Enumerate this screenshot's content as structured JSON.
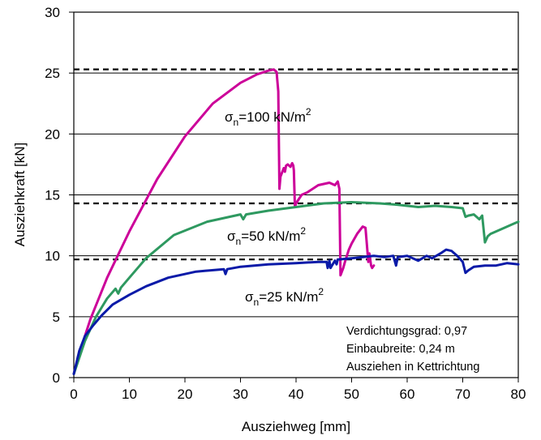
{
  "chart_data": {
    "type": "line",
    "xlabel": "Ausziehweg [mm]",
    "ylabel": "Ausziehkraft [kN]",
    "xlim": [
      0,
      80
    ],
    "ylim": [
      0,
      30
    ],
    "x_ticks": [
      "0",
      "10",
      "20",
      "30",
      "40",
      "50",
      "60",
      "70",
      "80"
    ],
    "y_ticks": [
      "0",
      "5",
      "10",
      "15",
      "20",
      "25",
      "30"
    ],
    "grid": "horizontal",
    "series": [
      {
        "color": "#cc0099",
        "x": [
          0,
          1,
          3,
          6,
          10,
          15,
          20,
          25,
          30,
          33,
          35,
          36,
          36.5,
          36.8,
          37.0,
          37.2,
          37.8,
          38.0,
          38.2,
          38.5,
          39.0,
          39.3,
          39.5,
          39.6,
          39.8,
          40.0,
          41,
          42,
          44,
          46,
          47,
          47.5,
          47.8,
          48.0,
          48.5,
          48.8,
          49.0,
          49.5,
          50,
          51,
          52,
          52.5,
          53.0,
          53.2,
          53.5,
          53.7,
          54.0
        ],
        "y": [
          0.3,
          2.0,
          4.8,
          8.2,
          12.0,
          16.3,
          19.8,
          22.5,
          24.2,
          24.9,
          25.2,
          25.3,
          25.1,
          23.5,
          15.5,
          16.5,
          17.2,
          16.9,
          17.4,
          17.5,
          17.3,
          17.6,
          17.4,
          17.0,
          14.0,
          14.3,
          15.0,
          15.2,
          15.8,
          16.0,
          15.8,
          16.1,
          15.5,
          8.4,
          9.0,
          9.5,
          9.8,
          10.5,
          11.0,
          11.8,
          12.4,
          12.3,
          9.5,
          10.2,
          9.2,
          9.0,
          9.2
        ]
      },
      {
        "color": "#2e9960",
        "x": [
          0,
          2,
          4,
          6,
          7.5,
          8,
          8.5,
          10,
          13,
          18,
          24,
          30,
          30.5,
          31,
          35,
          40,
          45,
          50,
          55,
          58,
          60,
          62,
          65,
          68,
          70,
          70.5,
          71,
          72,
          73,
          73.5,
          74,
          74.5,
          75,
          77,
          80
        ],
        "y": [
          0.3,
          3.0,
          5.0,
          6.5,
          7.3,
          6.9,
          7.4,
          8.2,
          9.8,
          11.7,
          12.8,
          13.4,
          13.0,
          13.4,
          13.7,
          14.0,
          14.3,
          14.4,
          14.3,
          14.2,
          14.1,
          14.0,
          14.1,
          14.0,
          13.9,
          13.2,
          13.3,
          13.4,
          13.0,
          13.3,
          11.1,
          11.6,
          11.8,
          12.2,
          12.8
        ]
      },
      {
        "color": "#0a1aa8",
        "x": [
          0,
          1,
          2,
          3.5,
          5,
          7,
          10,
          13,
          17,
          22,
          27,
          27.3,
          27.6,
          30,
          35,
          40,
          44,
          45.5,
          45.7,
          46.0,
          46.2,
          47,
          47.3,
          47.5,
          50,
          52,
          54,
          56,
          57.5,
          58.0,
          58.3,
          60,
          62,
          63.5,
          64.5,
          66,
          67,
          68,
          69,
          70,
          70.5,
          71,
          72,
          74,
          76,
          78,
          80
        ],
        "y": [
          0.3,
          2.2,
          3.4,
          4.3,
          5.1,
          6.0,
          6.8,
          7.5,
          8.2,
          8.7,
          8.9,
          8.5,
          8.9,
          9.1,
          9.3,
          9.4,
          9.5,
          9.5,
          9.0,
          9.6,
          9.0,
          9.6,
          9.3,
          9.7,
          9.8,
          9.9,
          10.0,
          9.9,
          10.0,
          9.2,
          9.9,
          10.0,
          9.6,
          10.0,
          9.8,
          10.2,
          10.5,
          10.4,
          10.0,
          9.5,
          8.6,
          8.8,
          9.1,
          9.2,
          9.2,
          9.4,
          9.3
        ]
      }
    ],
    "reference_lines": [
      25.3,
      14.3,
      9.7
    ],
    "annotations": [
      {
        "sigma": "σ",
        "sub": "n",
        "text": "=100 kN/m",
        "sup": "2"
      },
      {
        "sigma": "σ",
        "sub": "n",
        "text": "=50 kN/m",
        "sup": "2"
      },
      {
        "sigma": "σ",
        "sub": "n",
        "text": "=25 kN/m",
        "sup": "2"
      }
    ],
    "note_lines": [
      "Verdichtungsgrad: 0,97",
      "Einbaubreite: 0,24 m",
      "Ausziehen in Kettrichtung"
    ]
  }
}
